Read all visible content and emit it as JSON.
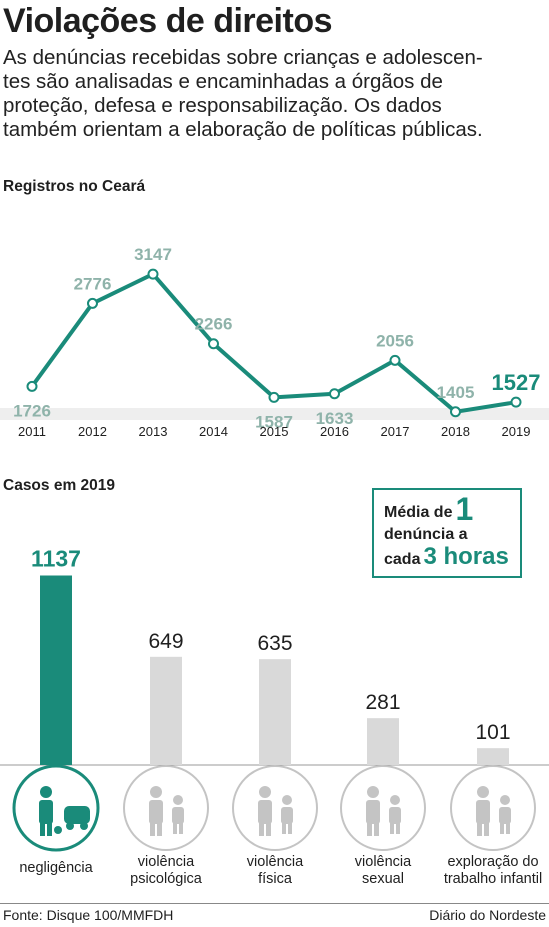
{
  "header": {
    "title": "Violações de direitos",
    "intro_lines": [
      "As denúncias recebidas sobre crianças e adolescen-",
      "tes são analisadas e encaminhadas a órgãos de",
      "proteção, defesa e responsabilização. Os dados",
      "também orientam a elaboração de políticas públicas."
    ]
  },
  "colors": {
    "accent": "#1a8b7a",
    "point_label": "#8fb3aa",
    "bar_gray": "#d9d9d9",
    "icon_gray": "#c4c4c4"
  },
  "chart_data": [
    {
      "type": "line",
      "title": "Registros no Ceará",
      "x": [
        "2011",
        "2012",
        "2013",
        "2014",
        "2015",
        "2016",
        "2017",
        "2018",
        "2019"
      ],
      "series": [
        {
          "values": [
            1726,
            2776,
            3147,
            2266,
            1587,
            1633,
            2056,
            1405,
            1527
          ]
        }
      ],
      "ylim": [
        1200,
        3300
      ],
      "grid": false
    },
    {
      "type": "bar",
      "title": "Casos em 2019",
      "categories": [
        {
          "line1": "negligência",
          "line2": "",
          "icon": "neglect-icon"
        },
        {
          "line1": "violência",
          "line2": "psicológica",
          "icon": "psychological-violence-icon"
        },
        {
          "line1": "violência",
          "line2": "física",
          "icon": "physical-violence-icon"
        },
        {
          "line1": "violência",
          "line2": "sexual",
          "icon": "sexual-violence-icon"
        },
        {
          "line1": "exploração do",
          "line2": "trabalho infantil",
          "icon": "child-labor-icon"
        }
      ],
      "values": [
        1137,
        649,
        635,
        281,
        101
      ],
      "ylim": [
        0,
        1200
      ]
    }
  ],
  "callout": {
    "line1": "Média de",
    "number": "1",
    "line2": "denúncia a",
    "line3": "cada",
    "hours": "3 horas"
  },
  "footer": {
    "source": "Fonte: Disque 100/MMFDH",
    "publisher": "Diário do Nordeste"
  }
}
